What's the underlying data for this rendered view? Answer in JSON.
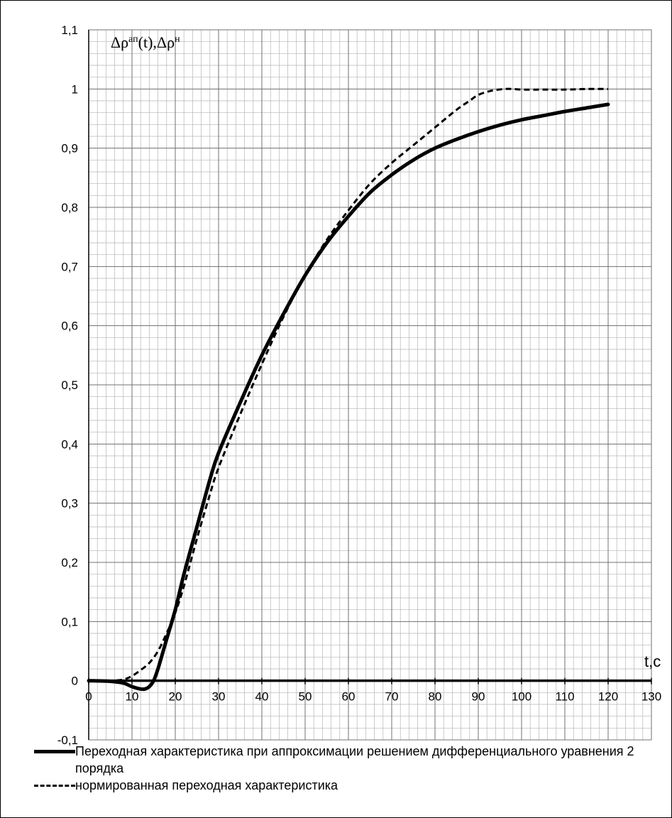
{
  "chart_data": {
    "type": "line",
    "ylabel_main": "Δρ",
    "ylabel_sup1": "ап",
    "ylabel_mid": "(t),Δρ",
    "ylabel_sup2": "н",
    "xlabel": "t,c",
    "xlim": [
      0,
      130
    ],
    "ylim": [
      -0.1,
      1.1
    ],
    "x_ticks": [
      "0",
      "10",
      "20",
      "30",
      "40",
      "50",
      "60",
      "70",
      "80",
      "90",
      "100",
      "110",
      "120",
      "130"
    ],
    "y_ticks": [
      "-0,1",
      "0",
      "0,1",
      "0,2",
      "0,3",
      "0,4",
      "0,5",
      "0,6",
      "0,7",
      "0,8",
      "0,9",
      "1",
      "1,1"
    ],
    "grid": true,
    "legend_position": "bottom",
    "series": [
      {
        "name": "Переходная характеристика при аппроксимации решением дифференциального уравнения 2 порядка",
        "style": "solid",
        "color": "#000000",
        "x": [
          0,
          5,
          8,
          10,
          12,
          13,
          14,
          15,
          16,
          18,
          20,
          22,
          25,
          28,
          30,
          35,
          40,
          45,
          50,
          55,
          60,
          65,
          70,
          75,
          80,
          85,
          90,
          95,
          100,
          105,
          110,
          115,
          120
        ],
        "y": [
          0,
          -0.001,
          -0.004,
          -0.01,
          -0.014,
          -0.014,
          -0.01,
          0.0,
          0.02,
          0.07,
          0.12,
          0.18,
          0.26,
          0.34,
          0.385,
          0.47,
          0.55,
          0.62,
          0.685,
          0.74,
          0.785,
          0.825,
          0.855,
          0.88,
          0.9,
          0.915,
          0.928,
          0.939,
          0.948,
          0.955,
          0.962,
          0.968,
          0.974
        ]
      },
      {
        "name": "нормированная переходная характеристика",
        "style": "dashed",
        "color": "#000000",
        "x": [
          0,
          5,
          8,
          10,
          12,
          14,
          16,
          18,
          20,
          22,
          25,
          28,
          30,
          35,
          40,
          45,
          50,
          55,
          60,
          65,
          70,
          75,
          80,
          85,
          88,
          90,
          93,
          96,
          98,
          100,
          105,
          110,
          115,
          120
        ],
        "y": [
          0,
          0,
          0.002,
          0.008,
          0.018,
          0.03,
          0.05,
          0.08,
          0.115,
          0.16,
          0.24,
          0.315,
          0.36,
          0.45,
          0.535,
          0.615,
          0.685,
          0.745,
          0.795,
          0.84,
          0.875,
          0.905,
          0.935,
          0.965,
          0.98,
          0.99,
          0.997,
          1.0,
          1.0,
          0.999,
          0.999,
          0.999,
          1.0,
          1.0
        ]
      }
    ]
  },
  "legend": {
    "solid_label": "Переходная характеристика при аппроксимации решением дифференциального уравнения 2 порядка",
    "dashed_label": "нормированная переходная характеристика"
  }
}
